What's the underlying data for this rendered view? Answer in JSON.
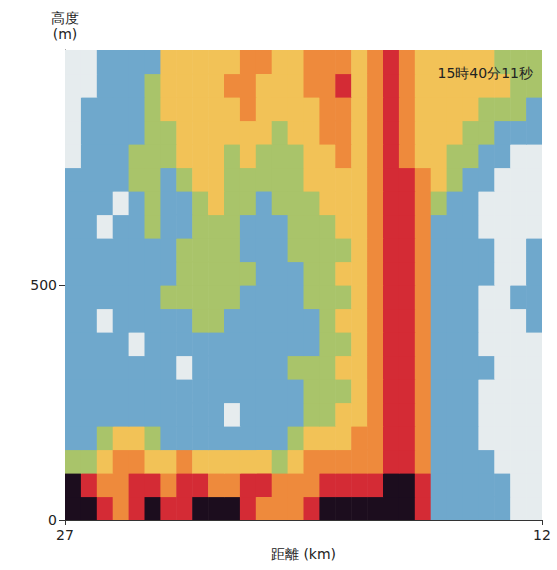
{
  "chart_data": {
    "type": "heatmap",
    "annotation": "15時40分11秒",
    "x_label": "距離 (km)",
    "y_label": "高度 (m)",
    "xlim": [
      27,
      12
    ],
    "xticks": [
      27,
      12
    ],
    "ylim": [
      0,
      1000
    ],
    "yticks": [
      0,
      500
    ],
    "colors": [
      "#e6ecee",
      "#6fa8cc",
      "#a9c46a",
      "#f2c257",
      "#ee8a3c",
      "#d42b35",
      "#1c0d1e"
    ],
    "cells": {
      "x": [
        26.75,
        26.25,
        25.75,
        25.25,
        24.75,
        24.25,
        23.75,
        23.25,
        22.75,
        22.25,
        21.75,
        21.25,
        20.75,
        20.25,
        19.75,
        19.25,
        18.75,
        18.25,
        17.75,
        17.25,
        16.75,
        16.25,
        15.75,
        15.25,
        14.75,
        14.25,
        13.75,
        13.25,
        12.75,
        12.25
      ],
      "y": [
        25,
        75,
        125,
        175,
        225,
        275,
        325,
        375,
        425,
        475,
        525,
        575,
        625,
        675,
        725,
        775,
        825,
        875,
        925,
        975
      ],
      "values": [
        [
          6,
          6,
          5,
          4,
          5,
          6,
          5,
          5,
          6,
          6,
          6,
          5,
          4,
          4,
          4,
          5,
          6,
          6,
          6,
          6,
          6,
          6,
          5,
          1,
          1,
          1,
          1,
          1,
          0,
          0
        ],
        [
          6,
          5,
          4,
          4,
          5,
          5,
          4,
          5,
          5,
          4,
          4,
          5,
          5,
          4,
          4,
          4,
          5,
          5,
          5,
          5,
          6,
          6,
          5,
          1,
          1,
          1,
          1,
          1,
          0,
          0
        ],
        [
          2,
          2,
          3,
          4,
          4,
          3,
          3,
          4,
          3,
          3,
          3,
          3,
          3,
          2,
          3,
          4,
          4,
          4,
          4,
          4,
          5,
          5,
          4,
          1,
          1,
          1,
          1,
          0,
          0,
          0
        ],
        [
          1,
          1,
          2,
          3,
          3,
          2,
          1,
          1,
          1,
          1,
          1,
          1,
          1,
          1,
          2,
          3,
          3,
          3,
          4,
          4,
          5,
          5,
          4,
          1,
          1,
          1,
          0,
          0,
          0,
          0
        ],
        [
          1,
          1,
          1,
          1,
          1,
          1,
          1,
          1,
          1,
          1,
          0,
          1,
          1,
          1,
          1,
          2,
          2,
          3,
          3,
          4,
          5,
          5,
          4,
          1,
          1,
          1,
          0,
          0,
          0,
          0
        ],
        [
          1,
          1,
          1,
          1,
          1,
          1,
          1,
          1,
          1,
          1,
          1,
          1,
          1,
          1,
          1,
          2,
          2,
          2,
          3,
          4,
          5,
          5,
          4,
          1,
          1,
          1,
          0,
          0,
          0,
          0
        ],
        [
          1,
          1,
          1,
          1,
          1,
          1,
          1,
          0,
          1,
          1,
          1,
          1,
          1,
          1,
          2,
          2,
          2,
          3,
          3,
          4,
          5,
          5,
          4,
          1,
          1,
          1,
          1,
          0,
          0,
          0
        ],
        [
          1,
          1,
          1,
          1,
          0,
          1,
          1,
          1,
          1,
          1,
          1,
          1,
          1,
          1,
          1,
          1,
          2,
          2,
          3,
          4,
          5,
          5,
          4,
          1,
          1,
          1,
          0,
          0,
          0,
          0
        ],
        [
          1,
          1,
          0,
          1,
          1,
          1,
          1,
          1,
          2,
          2,
          1,
          1,
          1,
          1,
          1,
          1,
          2,
          3,
          3,
          4,
          5,
          5,
          4,
          1,
          1,
          1,
          0,
          0,
          0,
          1
        ],
        [
          1,
          1,
          1,
          1,
          1,
          1,
          2,
          2,
          2,
          2,
          2,
          1,
          1,
          1,
          1,
          2,
          2,
          2,
          3,
          4,
          5,
          5,
          4,
          1,
          1,
          1,
          0,
          0,
          1,
          1
        ],
        [
          1,
          1,
          1,
          1,
          1,
          1,
          1,
          2,
          2,
          2,
          2,
          2,
          1,
          1,
          1,
          2,
          2,
          3,
          3,
          4,
          5,
          5,
          4,
          1,
          1,
          1,
          1,
          0,
          0,
          1
        ],
        [
          1,
          1,
          1,
          1,
          1,
          1,
          1,
          2,
          2,
          2,
          2,
          1,
          1,
          1,
          2,
          2,
          2,
          2,
          3,
          4,
          5,
          5,
          4,
          1,
          1,
          1,
          1,
          0,
          0,
          1
        ],
        [
          1,
          1,
          0,
          1,
          1,
          2,
          1,
          1,
          2,
          2,
          2,
          1,
          1,
          1,
          2,
          2,
          2,
          3,
          3,
          4,
          5,
          5,
          4,
          1,
          1,
          1,
          0,
          0,
          0,
          0
        ],
        [
          1,
          1,
          1,
          0,
          1,
          2,
          1,
          1,
          2,
          3,
          2,
          2,
          1,
          2,
          2,
          2,
          3,
          3,
          3,
          4,
          5,
          5,
          4,
          2,
          1,
          1,
          0,
          0,
          0,
          0
        ],
        [
          1,
          1,
          1,
          1,
          2,
          2,
          1,
          2,
          3,
          3,
          2,
          2,
          2,
          2,
          2,
          3,
          3,
          3,
          3,
          4,
          5,
          5,
          4,
          3,
          2,
          1,
          1,
          0,
          0,
          0
        ],
        [
          0,
          1,
          1,
          1,
          2,
          2,
          2,
          3,
          3,
          3,
          2,
          3,
          2,
          2,
          2,
          3,
          3,
          4,
          3,
          4,
          5,
          4,
          3,
          3,
          2,
          2,
          1,
          1,
          0,
          0
        ],
        [
          0,
          1,
          1,
          1,
          1,
          2,
          2,
          3,
          3,
          3,
          3,
          3,
          3,
          2,
          3,
          3,
          4,
          4,
          3,
          4,
          5,
          4,
          3,
          3,
          3,
          2,
          2,
          1,
          1,
          1
        ],
        [
          0,
          1,
          1,
          1,
          1,
          2,
          3,
          3,
          3,
          3,
          3,
          4,
          3,
          3,
          3,
          3,
          4,
          4,
          3,
          4,
          5,
          4,
          3,
          3,
          3,
          3,
          2,
          2,
          2,
          1
        ],
        [
          0,
          0,
          1,
          1,
          1,
          2,
          3,
          3,
          3,
          3,
          4,
          4,
          3,
          3,
          3,
          4,
          4,
          5,
          3,
          4,
          5,
          4,
          3,
          3,
          3,
          3,
          3,
          3,
          2,
          2
        ],
        [
          0,
          0,
          1,
          1,
          1,
          1,
          3,
          3,
          3,
          3,
          3,
          4,
          4,
          3,
          3,
          4,
          4,
          4,
          3,
          4,
          5,
          4,
          3,
          3,
          3,
          3,
          3,
          2,
          2,
          2
        ]
      ]
    }
  }
}
